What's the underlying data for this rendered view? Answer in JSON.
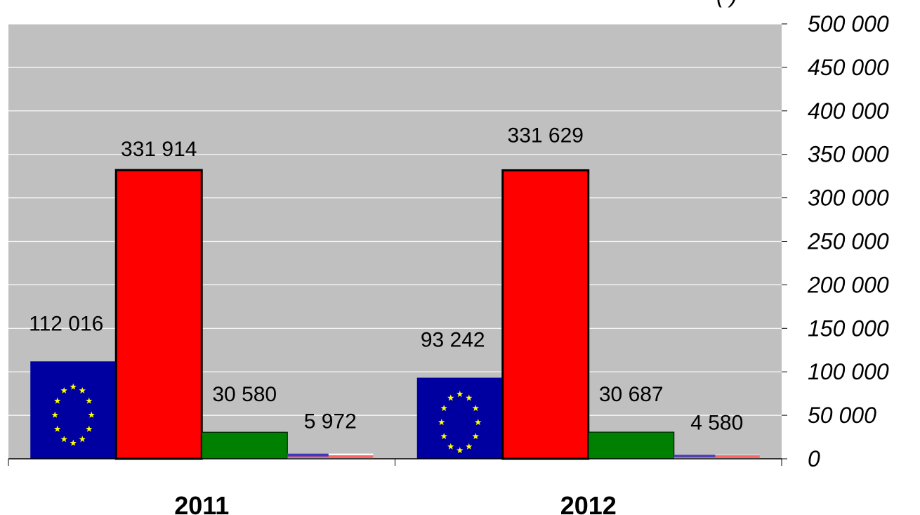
{
  "chart_data": {
    "type": "bar",
    "categories": [
      "2011",
      "2012"
    ],
    "series": [
      {
        "values": [
          112016,
          93242
        ],
        "color": "#0000a0",
        "pattern": "eu-flag"
      },
      {
        "values": [
          331914,
          331629
        ],
        "color": "#ff0000",
        "pattern": "solid"
      },
      {
        "values": [
          30580,
          30687
        ],
        "color": "#008000",
        "pattern": "solid"
      },
      {
        "values": [
          5972,
          4580
        ],
        "color": "#ff9999",
        "pattern": "us-flag"
      }
    ],
    "data_labels": [
      [
        "112 016",
        "93 242"
      ],
      [
        "331 914",
        "331 629"
      ],
      [
        "30 580",
        "30 687"
      ],
      [
        "5 972",
        "4 580"
      ]
    ],
    "y_ticks": [
      "0",
      "50 000",
      "100 000",
      "150 000",
      "200 000",
      "250 000",
      "300 000",
      "350 000",
      "400 000",
      "450 000",
      "500 000"
    ],
    "ylim": [
      0,
      500000
    ],
    "y_axis_side": "right",
    "unit_label_partial": "(        )",
    "title": "",
    "xlabel": "",
    "ylabel": "",
    "grid": true,
    "plot_background": "#c0c0c0",
    "gridline_color": "#ffffff"
  }
}
